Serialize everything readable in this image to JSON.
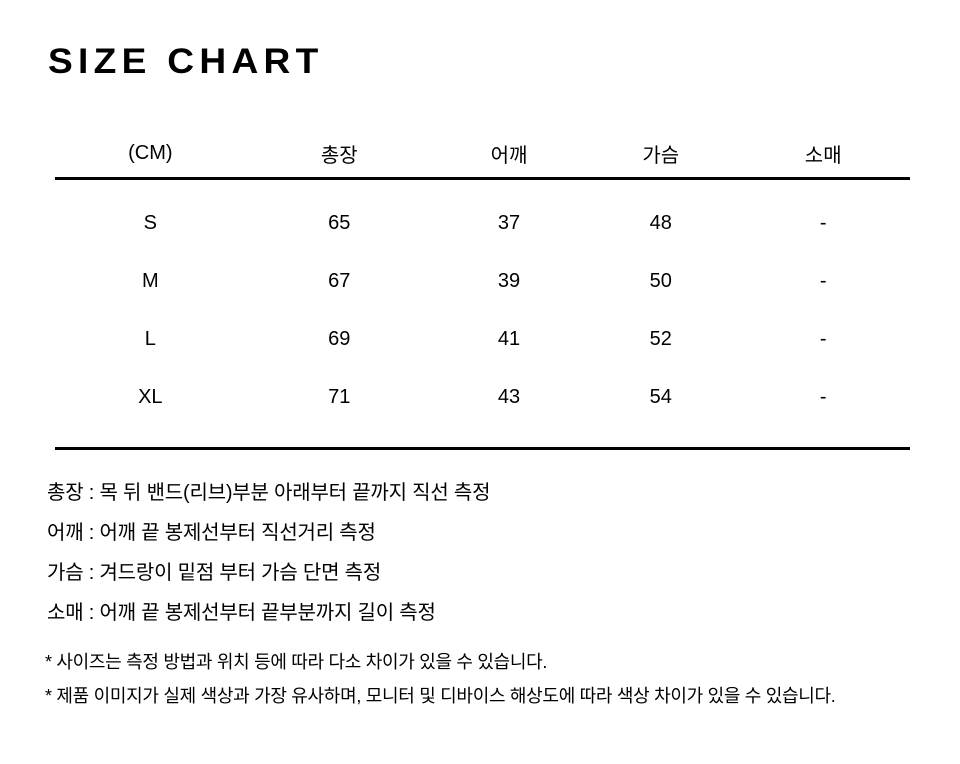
{
  "page": {
    "title": "SIZE CHART"
  },
  "colors": {
    "text": "#000000",
    "background": "#ffffff",
    "rule": "#000000"
  },
  "size_table": {
    "unit_label": "(CM)",
    "column_headers": [
      "총장",
      "어깨",
      "가슴",
      "소매"
    ],
    "rows": [
      {
        "size": "S",
        "values": [
          "65",
          "37",
          "48",
          "-"
        ]
      },
      {
        "size": "M",
        "values": [
          "67",
          "39",
          "50",
          "-"
        ]
      },
      {
        "size": "L",
        "values": [
          "69",
          "41",
          "52",
          "-"
        ]
      },
      {
        "size": "XL",
        "values": [
          "71",
          "43",
          "54",
          "-"
        ]
      }
    ]
  },
  "measurement_guide": {
    "lines": [
      "총장 : 목 뒤 밴드(리브)부분 아래부터 끝까지 직선 측정",
      "어깨 : 어깨 끝 봉제선부터 직선거리 측정",
      "가슴 : 겨드랑이 밑점 부터 가슴 단면 측정",
      "소매 : 어깨 끝 봉제선부터 끝부분까지 길이 측정"
    ]
  },
  "notes": {
    "lines": [
      "* 사이즈는 측정 방법과 위치 등에 따라 다소 차이가 있을 수 있습니다.",
      "* 제품 이미지가 실제 색상과 가장 유사하며, 모니터 및 디바이스 해상도에 따라 색상 차이가 있을 수 있습니다."
    ]
  }
}
